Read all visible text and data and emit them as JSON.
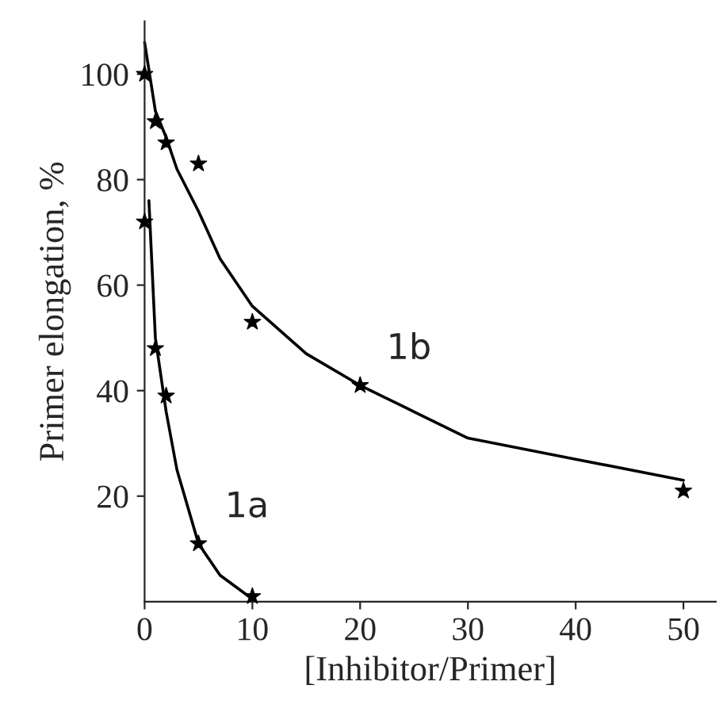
{
  "chart_data": {
    "type": "scatter",
    "xlabel": "[Inhibitor/Primer]",
    "ylabel": "Primer elongation, %",
    "xlim": [
      0,
      53
    ],
    "ylim": [
      0,
      110
    ],
    "xticks": [
      0,
      10,
      20,
      30,
      40,
      50
    ],
    "yticks": [
      20,
      40,
      60,
      80,
      100
    ],
    "grid": false,
    "legend": false,
    "series": [
      {
        "color": "#000000",
        "marker": "star",
        "x": [
          0,
          1,
          2,
          5,
          10,
          20,
          50
        ],
        "values": [
          100,
          91,
          87,
          83,
          53,
          41,
          21
        ]
      },
      {
        "color": "#000000",
        "marker": "star",
        "x": [
          0,
          1,
          2,
          5,
          10
        ],
        "values": [
          72,
          48,
          39,
          11,
          1
        ]
      },
      {
        "type": "line",
        "name": "1b",
        "color": "#000000",
        "line_style": "solid",
        "x": [
          0,
          1,
          2,
          3,
          5,
          7,
          10,
          15,
          20,
          25,
          30,
          40,
          50
        ],
        "values": [
          106,
          93,
          88,
          82,
          74,
          65,
          56,
          47,
          41,
          36,
          31,
          27,
          23
        ]
      },
      {
        "type": "line",
        "name": "1a",
        "color": "#000000",
        "line_style": "solid",
        "x": [
          0.4,
          1,
          2,
          3,
          5,
          7,
          10
        ],
        "values": [
          76,
          50,
          36,
          25,
          11,
          5,
          0.5
        ]
      }
    ]
  }
}
